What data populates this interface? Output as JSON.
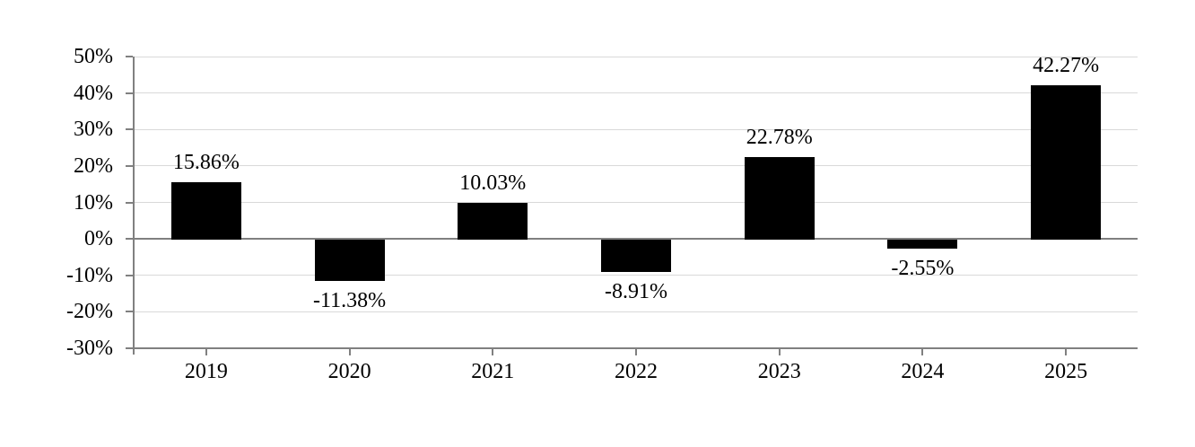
{
  "chart_data": {
    "type": "bar",
    "title": "",
    "xlabel": "",
    "ylabel": "",
    "categories": [
      "2019",
      "2020",
      "2021",
      "2022",
      "2023",
      "2024",
      "2025"
    ],
    "values": [
      15.86,
      -11.38,
      10.03,
      -8.91,
      22.78,
      -2.55,
      42.27
    ],
    "value_labels": [
      "15.86%",
      "-11.38%",
      "10.03%",
      "-8.91%",
      "22.78%",
      "-2.55%",
      "42.27%"
    ],
    "y_ticks": [
      50,
      40,
      30,
      20,
      10,
      0,
      -10,
      -20,
      -30
    ],
    "y_tick_labels": [
      "50%",
      "40%",
      "30%",
      "20%",
      "10%",
      "0%",
      "-10%",
      "-20%",
      "-30%"
    ],
    "ylim": [
      -30,
      50
    ],
    "grid": true,
    "legend": false,
    "bar_color": "#000000",
    "axis_color": "#808080",
    "gridline_color": "#d9d9d9",
    "text_color": "#000000"
  }
}
